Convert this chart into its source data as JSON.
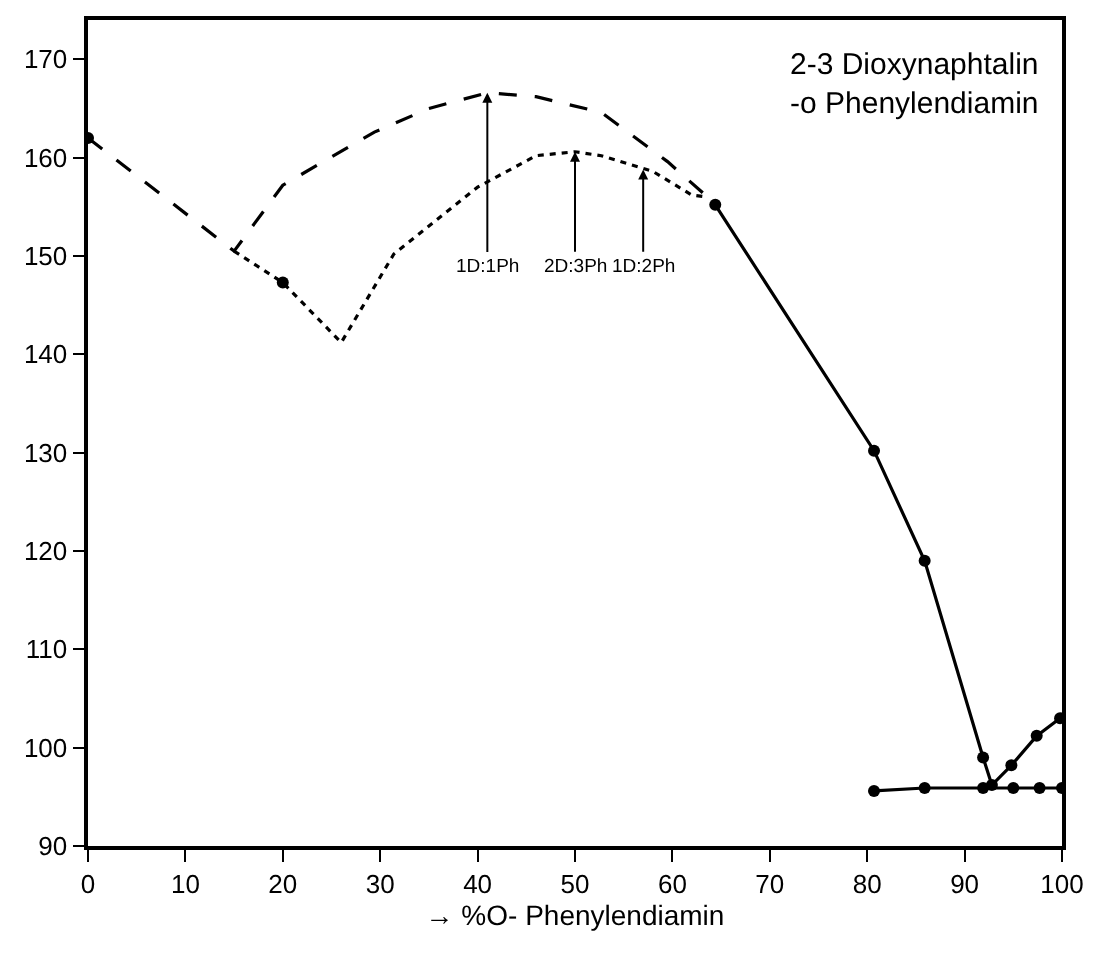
{
  "chart_data": {
    "type": "line",
    "title": "2-3 Dioxynaphtalin\n-o Phenylendiamin",
    "xlabel": "→ %O- Phenylendiamin",
    "xlim": [
      0,
      100
    ],
    "xticks": [
      0,
      10,
      20,
      30,
      40,
      50,
      60,
      70,
      80,
      90,
      100
    ],
    "ylim": [
      90,
      174
    ],
    "yticks": [
      90,
      100,
      110,
      120,
      130,
      140,
      150,
      160,
      170
    ],
    "series": [
      {
        "color": "#000000",
        "line_style": "dashed",
        "marker": "none",
        "x": [
          0,
          15,
          20,
          29.4,
          35,
          41,
          46,
          52.7,
          59.5,
          63.6
        ],
        "values": [
          162,
          150.5,
          157.2,
          162.6,
          165,
          166.6,
          166.2,
          164.6,
          159.6,
          156
        ]
      },
      {
        "color": "#000000",
        "line_style": "dotted",
        "marker": "none",
        "x": [
          15,
          20,
          26,
          31.4,
          40,
          46,
          50,
          52.7,
          58,
          62,
          63.6
        ],
        "values": [
          150.5,
          147.3,
          141.2,
          150.2,
          157,
          160.2,
          160.6,
          160.2,
          158.6,
          156.2,
          156
        ]
      },
      {
        "color": "#000000",
        "type": "scatter",
        "marker": "circle",
        "x": [
          0,
          20
        ],
        "values": [
          162,
          147.3
        ]
      },
      {
        "color": "#000000",
        "line_style": "solid",
        "marker": "circle",
        "x": [
          64.4,
          80.7,
          85.9,
          91.9,
          92.8,
          94.8,
          97.4,
          99.8
        ],
        "values": [
          155.2,
          130.2,
          119,
          99,
          96.2,
          98.2,
          101.2,
          103
        ]
      },
      {
        "color": "#000000",
        "line_style": "solid",
        "marker": "circle",
        "x": [
          80.7,
          85.9,
          91.9,
          95,
          97.7,
          100
        ],
        "values": [
          95.6,
          95.9,
          95.9,
          95.9,
          95.9,
          95.9
        ]
      }
    ],
    "annotations": [
      {
        "text": "1D:1Ph",
        "x": 41,
        "y": 166.6
      },
      {
        "text": "2D:3Ph",
        "x": 50,
        "y": 160.6
      },
      {
        "text": "1D:2Ph",
        "x": 57,
        "y": 158.8
      }
    ]
  }
}
